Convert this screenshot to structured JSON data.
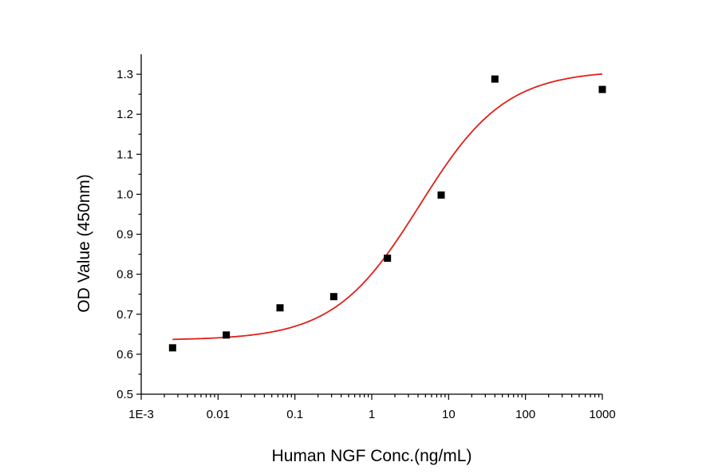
{
  "chart_data": {
    "type": "scatter",
    "title": "",
    "xlabel": "Human NGF Conc.(ng/mL)",
    "ylabel": "OD Value (450nm)",
    "xscale": "log",
    "xlim": [
      0.001,
      1000
    ],
    "ylim": [
      0.5,
      1.35
    ],
    "x_ticks": [
      0.001,
      0.01,
      0.1,
      1,
      10,
      100,
      1000
    ],
    "x_tick_labels": [
      "1E-3",
      "0.01",
      "0.1",
      "1",
      "10",
      "100",
      "1000"
    ],
    "y_ticks": [
      0.5,
      0.6,
      0.7,
      0.8,
      0.9,
      1.0,
      1.1,
      1.2,
      1.3
    ],
    "y_tick_labels": [
      "0.5",
      "0.6",
      "0.7",
      "0.8",
      "0.9",
      "1.0",
      "1.1",
      "1.2",
      "1.3"
    ],
    "grid": false,
    "series": [
      {
        "kind": "points",
        "marker": "square",
        "color": "#000000",
        "x": [
          0.00256,
          0.0128,
          0.064,
          0.32,
          1.6,
          8,
          40,
          1000
        ],
        "y": [
          0.616,
          0.648,
          0.716,
          0.744,
          0.84,
          0.998,
          1.288,
          1.262
        ]
      },
      {
        "kind": "fit_curve",
        "color": "#e0201b",
        "x_range": [
          0.00256,
          1000
        ],
        "model": "4PL",
        "params": {
          "bottom": 0.635,
          "top": 1.31,
          "ec50": 4.2,
          "hill": 0.78
        }
      }
    ]
  }
}
